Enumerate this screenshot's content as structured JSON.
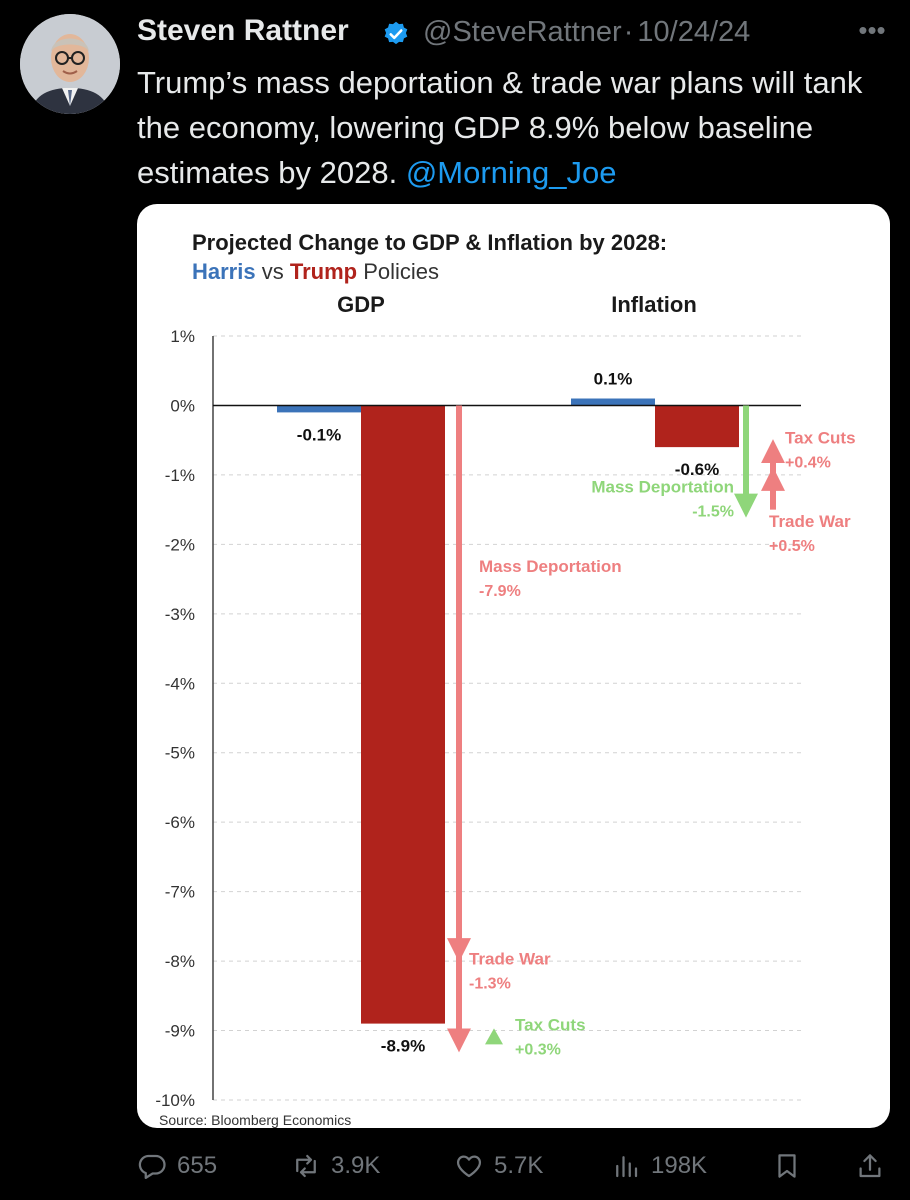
{
  "tweet": {
    "author_name": "Steven Rattner",
    "handle": "@SteveRattner",
    "separator": "·",
    "date": "10/24/24",
    "text_main": "Trump’s mass deportation & trade war plans will tank the economy, lowering GDP 8.9% below baseline estimates by 2028.",
    "mention": "@Morning_Joe"
  },
  "actions": {
    "replies": "655",
    "reposts": "3.9K",
    "likes": "5.7K",
    "views": "198K"
  },
  "colors": {
    "harris_blue": "#3b73b9",
    "trump_red": "#b0231c",
    "arrow_red": "#ee7f80",
    "arrow_green": "#8fd67a",
    "link_blue": "#1d9bf0"
  },
  "chart_data": {
    "type": "bar",
    "title": "Projected Change to GDP & Inflation by 2028:",
    "subtitle_harris": "Harris",
    "subtitle_vs": "vs",
    "subtitle_trump": "Trump",
    "subtitle_rest": "Policies",
    "source": "Source: Bloomberg Economics",
    "ylim": [
      -10,
      1
    ],
    "yticks": [
      "1%",
      "0%",
      "-1%",
      "-2%",
      "-3%",
      "-4%",
      "-5%",
      "-6%",
      "-7%",
      "-8%",
      "-9%",
      "-10%"
    ],
    "ytick_values": [
      1,
      0,
      -1,
      -2,
      -3,
      -4,
      -5,
      -6,
      -7,
      -8,
      -9,
      -10
    ],
    "groups": [
      {
        "name": "GDP",
        "harris": {
          "value": -0.1,
          "label": "-0.1%"
        },
        "trump": {
          "value": -8.9,
          "label": "-8.9%"
        },
        "components": [
          {
            "name": "Mass Deportation",
            "label": "-7.9%",
            "from": 0,
            "to": -7.9,
            "kind": "red"
          },
          {
            "name": "Trade War",
            "label": "-1.3%",
            "from": -7.9,
            "to": -9.2,
            "kind": "red"
          },
          {
            "name": "Tax Cuts",
            "label": "+0.3%",
            "from": -9.2,
            "to": -8.9,
            "kind": "green"
          }
        ]
      },
      {
        "name": "Inflation",
        "harris": {
          "value": 0.1,
          "label": "0.1%"
        },
        "trump": {
          "value": -0.6,
          "label": "-0.6%"
        },
        "components": [
          {
            "name": "Mass Deportation",
            "label": "-1.5%",
            "from": 0,
            "to": -1.5,
            "kind": "green"
          },
          {
            "name": "Trade War",
            "label": "+0.5%",
            "from": -1.5,
            "to": -1.0,
            "kind": "red"
          },
          {
            "name": "Tax Cuts",
            "label": "+0.4%",
            "from": -1.0,
            "to": -0.6,
            "kind": "red"
          }
        ]
      }
    ]
  }
}
